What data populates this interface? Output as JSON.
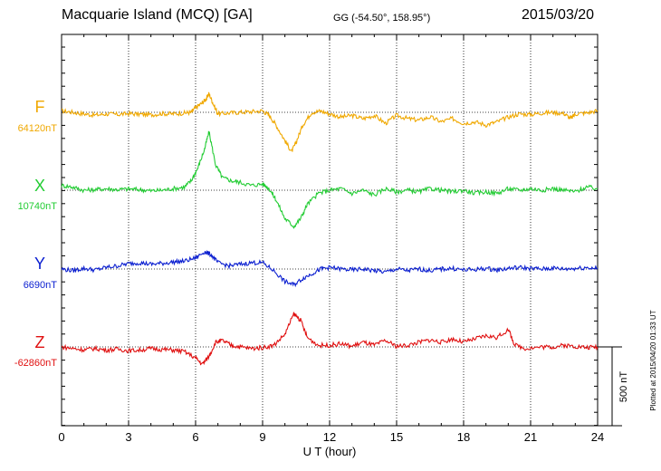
{
  "header": {
    "station": "Macquarie Island (MCQ)  [GA]",
    "coords": "GG (-54.50°, 158.95°)",
    "date": "2015/03/20"
  },
  "chart_data": {
    "type": "line",
    "xlabel": "U T (hour)",
    "xlim": [
      0,
      24
    ],
    "xticks": [
      "0",
      "3",
      "6",
      "9",
      "12",
      "15",
      "18",
      "21",
      "24"
    ],
    "scale_bar": {
      "label": "500 nT",
      "nT": 500
    },
    "plotted_note": "Plotted at 2015/04/20 01:33 UT",
    "grid": true,
    "series": [
      {
        "name": "F",
        "baseline_label": "64120nT",
        "baseline_nT": 64120,
        "color": "#f0a800",
        "points": [
          [
            0,
            10
          ],
          [
            0.5,
            0
          ],
          [
            1.0,
            -10
          ],
          [
            1.5,
            -18
          ],
          [
            2.0,
            -10
          ],
          [
            2.5,
            -14
          ],
          [
            3.0,
            -8
          ],
          [
            3.5,
            -12
          ],
          [
            4.0,
            -16
          ],
          [
            4.5,
            -8
          ],
          [
            5.0,
            -10
          ],
          [
            5.5,
            -4
          ],
          [
            5.8,
            0
          ],
          [
            6.0,
            30
          ],
          [
            6.3,
            60
          ],
          [
            6.5,
            90
          ],
          [
            6.6,
            120
          ],
          [
            6.8,
            50
          ],
          [
            7.0,
            -10
          ],
          [
            7.5,
            -4
          ],
          [
            8.0,
            0
          ],
          [
            8.5,
            4
          ],
          [
            9.0,
            10
          ],
          [
            9.3,
            -20
          ],
          [
            9.6,
            -80
          ],
          [
            10.0,
            -180
          ],
          [
            10.3,
            -250
          ],
          [
            10.5,
            -190
          ],
          [
            10.8,
            -80
          ],
          [
            11.2,
            0
          ],
          [
            11.6,
            8
          ],
          [
            12.0,
            -10
          ],
          [
            12.5,
            -30
          ],
          [
            13.0,
            -20
          ],
          [
            13.5,
            -40
          ],
          [
            14.0,
            -20
          ],
          [
            14.5,
            -70
          ],
          [
            15.0,
            -20
          ],
          [
            15.5,
            -40
          ],
          [
            16.0,
            -50
          ],
          [
            16.5,
            -30
          ],
          [
            17.0,
            -60
          ],
          [
            17.5,
            -40
          ],
          [
            18.0,
            -70
          ],
          [
            18.5,
            -60
          ],
          [
            19.0,
            -80
          ],
          [
            19.5,
            -60
          ],
          [
            20.0,
            -30
          ],
          [
            20.5,
            -10
          ],
          [
            21.0,
            -14
          ],
          [
            21.5,
            -4
          ],
          [
            22.0,
            0
          ],
          [
            22.5,
            -8
          ],
          [
            22.8,
            -40
          ],
          [
            23.0,
            -10
          ],
          [
            23.5,
            -4
          ],
          [
            24.0,
            10
          ]
        ]
      },
      {
        "name": "X",
        "baseline_label": "10740nT",
        "baseline_nT": 10740,
        "color": "#22cc33",
        "points": [
          [
            0,
            30
          ],
          [
            0.5,
            20
          ],
          [
            1.0,
            0
          ],
          [
            1.5,
            4
          ],
          [
            2.0,
            10
          ],
          [
            2.5,
            4
          ],
          [
            3.0,
            8
          ],
          [
            3.5,
            4
          ],
          [
            4.0,
            -4
          ],
          [
            4.5,
            0
          ],
          [
            5.0,
            10
          ],
          [
            5.5,
            20
          ],
          [
            5.8,
            60
          ],
          [
            6.1,
            140
          ],
          [
            6.4,
            260
          ],
          [
            6.6,
            370
          ],
          [
            6.9,
            160
          ],
          [
            7.2,
            80
          ],
          [
            7.6,
            60
          ],
          [
            8.0,
            50
          ],
          [
            8.5,
            30
          ],
          [
            9.0,
            40
          ],
          [
            9.3,
            10
          ],
          [
            9.6,
            -60
          ],
          [
            10.0,
            -180
          ],
          [
            10.4,
            -230
          ],
          [
            10.7,
            -180
          ],
          [
            11.0,
            -90
          ],
          [
            11.5,
            -20
          ],
          [
            12.0,
            0
          ],
          [
            12.5,
            10
          ],
          [
            13.0,
            -20
          ],
          [
            13.5,
            0
          ],
          [
            14.0,
            -30
          ],
          [
            14.5,
            10
          ],
          [
            15.0,
            -10
          ],
          [
            15.5,
            0
          ],
          [
            16.0,
            -10
          ],
          [
            16.5,
            10
          ],
          [
            17.0,
            0
          ],
          [
            17.5,
            -10
          ],
          [
            18.0,
            0
          ],
          [
            18.5,
            -20
          ],
          [
            19.0,
            -10
          ],
          [
            19.5,
            -20
          ],
          [
            20.0,
            10
          ],
          [
            20.5,
            0
          ],
          [
            21.0,
            10
          ],
          [
            21.5,
            0
          ],
          [
            22.0,
            10
          ],
          [
            22.5,
            0
          ],
          [
            23.0,
            -10
          ],
          [
            23.5,
            20
          ],
          [
            24.0,
            10
          ]
        ]
      },
      {
        "name": "Y",
        "baseline_label": "6690nT",
        "baseline_nT": 6690,
        "color": "#0a1ed0",
        "points": [
          [
            0,
            0
          ],
          [
            0.5,
            -10
          ],
          [
            1.0,
            4
          ],
          [
            1.5,
            -6
          ],
          [
            2.0,
            10
          ],
          [
            2.5,
            20
          ],
          [
            3.0,
            34
          ],
          [
            3.5,
            40
          ],
          [
            4.0,
            30
          ],
          [
            4.5,
            36
          ],
          [
            5.0,
            44
          ],
          [
            5.5,
            50
          ],
          [
            6.0,
            70
          ],
          [
            6.4,
            110
          ],
          [
            6.7,
            90
          ],
          [
            7.0,
            40
          ],
          [
            7.5,
            20
          ],
          [
            8.0,
            30
          ],
          [
            8.5,
            40
          ],
          [
            9.0,
            40
          ],
          [
            9.5,
            -10
          ],
          [
            10.0,
            -80
          ],
          [
            10.4,
            -100
          ],
          [
            10.8,
            -60
          ],
          [
            11.2,
            -30
          ],
          [
            11.6,
            0
          ],
          [
            12.0,
            10
          ],
          [
            12.5,
            0
          ],
          [
            13.0,
            -6
          ],
          [
            13.5,
            0
          ],
          [
            14.0,
            -10
          ],
          [
            14.5,
            -20
          ],
          [
            15.0,
            0
          ],
          [
            15.5,
            -10
          ],
          [
            16.0,
            0
          ],
          [
            16.5,
            -10
          ],
          [
            17.0,
            0
          ],
          [
            17.5,
            4
          ],
          [
            18.0,
            -6
          ],
          [
            18.5,
            -4
          ],
          [
            19.0,
            4
          ],
          [
            19.5,
            -6
          ],
          [
            20.0,
            4
          ],
          [
            20.5,
            10
          ],
          [
            21.0,
            4
          ],
          [
            21.5,
            0
          ],
          [
            22.0,
            6
          ],
          [
            22.5,
            0
          ],
          [
            23.0,
            4
          ],
          [
            23.5,
            10
          ],
          [
            24.0,
            4
          ]
        ]
      },
      {
        "name": "Z",
        "baseline_label": "-62860nT",
        "baseline_nT": -62860,
        "color": "#e01010",
        "points": [
          [
            0,
            0
          ],
          [
            0.5,
            -10
          ],
          [
            1.0,
            -18
          ],
          [
            1.5,
            -10
          ],
          [
            2.0,
            -20
          ],
          [
            2.5,
            -14
          ],
          [
            3.0,
            -24
          ],
          [
            3.5,
            -20
          ],
          [
            4.0,
            -10
          ],
          [
            4.5,
            -16
          ],
          [
            5.0,
            -20
          ],
          [
            5.5,
            -30
          ],
          [
            6.0,
            -70
          ],
          [
            6.3,
            -110
          ],
          [
            6.6,
            -60
          ],
          [
            6.9,
            30
          ],
          [
            7.2,
            40
          ],
          [
            7.6,
            10
          ],
          [
            8.0,
            0
          ],
          [
            8.5,
            -10
          ],
          [
            9.0,
            -4
          ],
          [
            9.5,
            10
          ],
          [
            10.0,
            80
          ],
          [
            10.4,
            210
          ],
          [
            10.7,
            170
          ],
          [
            11.0,
            60
          ],
          [
            11.5,
            10
          ],
          [
            12.0,
            10
          ],
          [
            12.5,
            20
          ],
          [
            13.0,
            4
          ],
          [
            13.5,
            30
          ],
          [
            14.0,
            10
          ],
          [
            14.5,
            40
          ],
          [
            15.0,
            4
          ],
          [
            15.5,
            10
          ],
          [
            16.0,
            30
          ],
          [
            16.5,
            44
          ],
          [
            17.0,
            30
          ],
          [
            17.5,
            50
          ],
          [
            18.0,
            30
          ],
          [
            18.5,
            50
          ],
          [
            19.0,
            70
          ],
          [
            19.5,
            60
          ],
          [
            20.0,
            110
          ],
          [
            20.3,
            10
          ],
          [
            20.8,
            -10
          ],
          [
            21.5,
            0
          ],
          [
            22.0,
            0
          ],
          [
            22.5,
            10
          ],
          [
            23.0,
            4
          ],
          [
            23.5,
            -4
          ],
          [
            24.0,
            0
          ]
        ]
      }
    ]
  }
}
